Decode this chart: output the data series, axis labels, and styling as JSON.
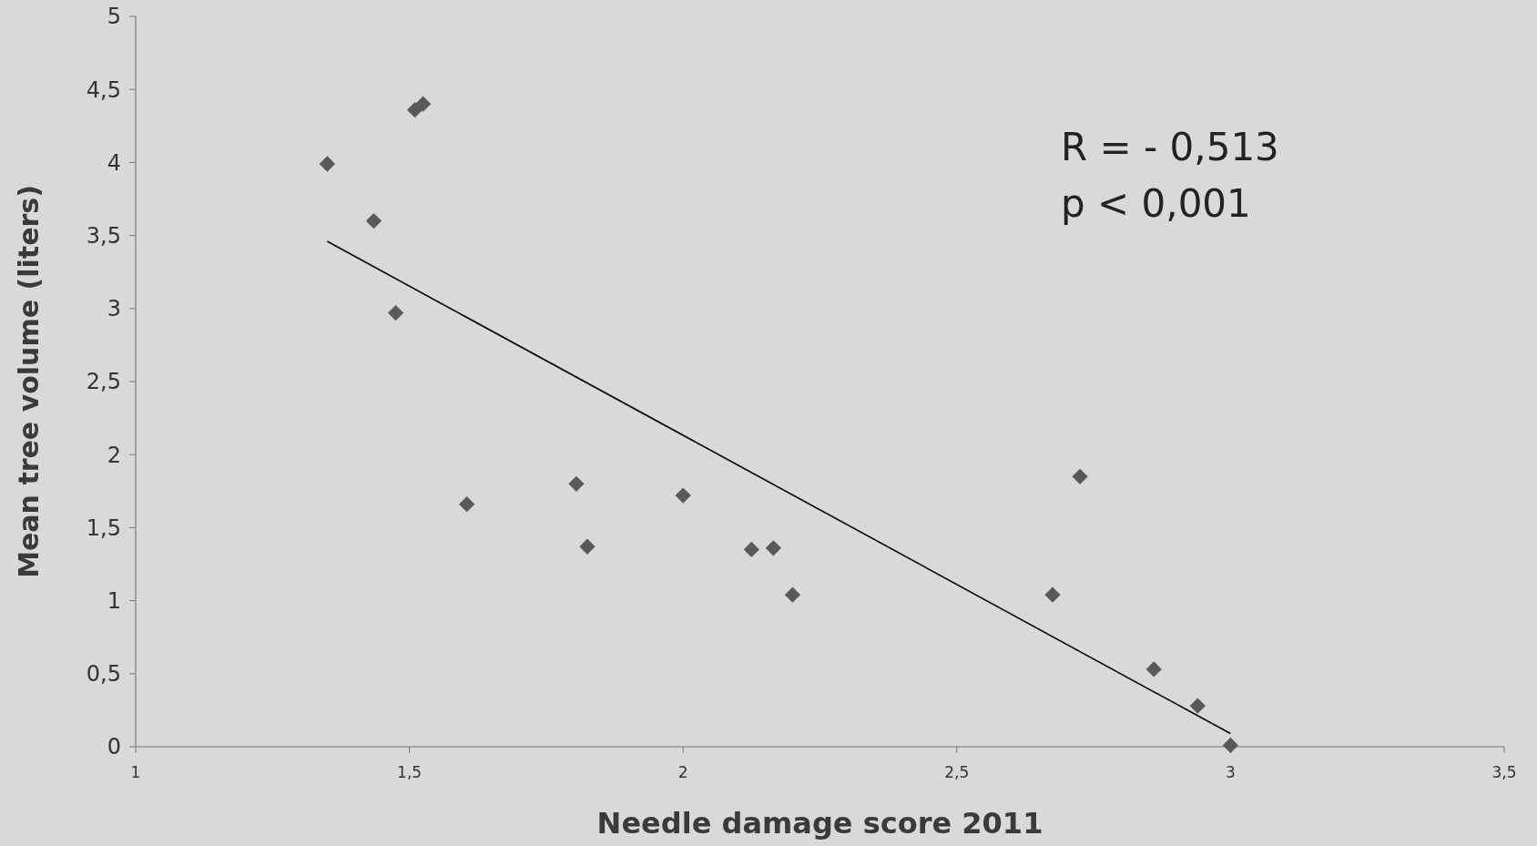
{
  "chart_data": {
    "type": "scatter",
    "xlabel": "Needle damage score 2011",
    "ylabel": "Mean tree volume (liters)",
    "xlim": [
      1,
      3.5
    ],
    "ylim": [
      0,
      5
    ],
    "xticks": [
      1,
      {
        "value": 1.5,
        "label": "1,5"
      },
      2,
      {
        "value": 2.5,
        "label": "2,5"
      },
      3,
      {
        "value": 3.5,
        "label": "3,5"
      }
    ],
    "yticks": [
      0,
      {
        "value": 0.5,
        "label": "0,5"
      },
      1,
      {
        "value": 1.5,
        "label": "1,5"
      },
      2,
      {
        "value": 2.5,
        "label": "2,5"
      },
      3,
      {
        "value": 3.5,
        "label": "3,5"
      },
      4,
      {
        "value": 4.5,
        "label": "4,5"
      },
      5
    ],
    "grid": false,
    "annotations": [
      "R = - 0,513",
      "p < 0,001"
    ],
    "series": [
      {
        "marker": "diamond",
        "color": "#595959",
        "x": [
          1.35,
          1.435,
          1.51,
          1.525,
          1.475,
          1.605,
          1.805,
          1.825,
          2.0,
          2.125,
          2.165,
          2.2,
          2.675,
          2.725,
          2.86,
          2.94,
          3.0
        ],
        "values": [
          3.99,
          3.6,
          4.36,
          4.4,
          2.97,
          1.66,
          1.8,
          1.37,
          1.72,
          1.35,
          1.36,
          1.04,
          1.04,
          1.85,
          0.53,
          0.28,
          0.01
        ]
      },
      {
        "type": "line",
        "color": "#000000",
        "x": [
          1.35,
          3.0
        ],
        "values": [
          3.46,
          0.09
        ]
      }
    ]
  }
}
